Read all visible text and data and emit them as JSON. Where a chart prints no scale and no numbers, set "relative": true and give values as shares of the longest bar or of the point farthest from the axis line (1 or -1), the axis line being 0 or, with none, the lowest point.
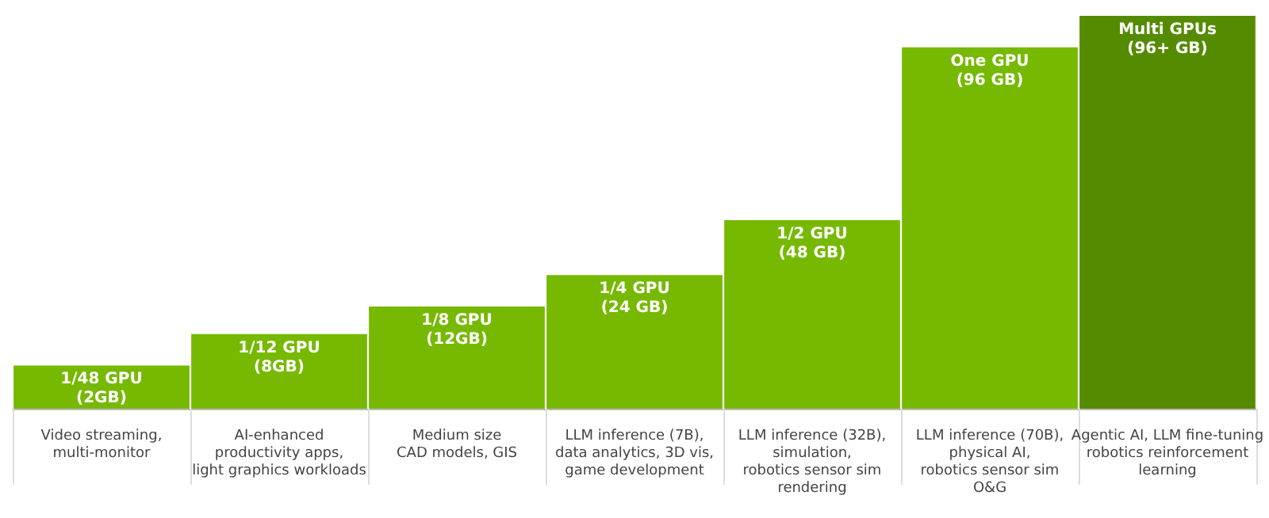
{
  "chart_data": {
    "type": "bar",
    "relative": true,
    "categories": [
      "Video streaming,\nmulti-monitor",
      "AI-enhanced\nproductivity apps,\nlight graphics workloads",
      "Medium size\nCAD models, GIS",
      "LLM inference (7B),\ndata analytics, 3D vis,\ngame development",
      "LLM inference (32B),\nsimulation,\nrobotics sensor sim\nrendering",
      "LLM inference (70B),\nphysical AI,\nrobotics sensor sim\nO&G",
      "Agentic AI, LLM fine-tuning\nrobotics reinforcement\nlearning"
    ],
    "values": [
      0.11,
      0.19,
      0.26,
      0.34,
      0.48,
      0.92,
      1
    ],
    "colors": [
      "#76b900",
      "#76b900",
      "#76b900",
      "#76b900",
      "#76b900",
      "#76b900",
      "#558b00"
    ],
    "annotations": [
      {
        "text": "1/48 GPU\n(2GB)",
        "x": "Video streaming,\nmulti-monitor",
        "y": 0.11
      },
      {
        "text": "1/12 GPU\n(8GB)",
        "x": "AI-enhanced\nproductivity apps,\nlight graphics workloads",
        "y": 0.19
      },
      {
        "text": "1/8 GPU\n(12GB)",
        "x": "Medium size\nCAD models, GIS",
        "y": 0.26
      },
      {
        "text": "1/4 GPU\n(24 GB)",
        "x": "LLM inference (7B),\ndata analytics, 3D vis,\ngame development",
        "y": 0.34
      },
      {
        "text": "1/2 GPU\n(48 GB)",
        "x": "LLM inference (32B),\nsimulation,\nrobotics sensor sim\nrendering",
        "y": 0.48
      },
      {
        "text": "One GPU\n(96 GB)",
        "x": "LLM inference (70B),\nphysical AI,\nrobotics sensor sim\nO&G",
        "y": 0.92
      },
      {
        "text": "Multi GPUs\n(96+ GB)",
        "x": "Agentic AI, LLM fine-tuning\nrobotics reinforcement\nlearning",
        "y": 1
      }
    ],
    "grid": false
  }
}
